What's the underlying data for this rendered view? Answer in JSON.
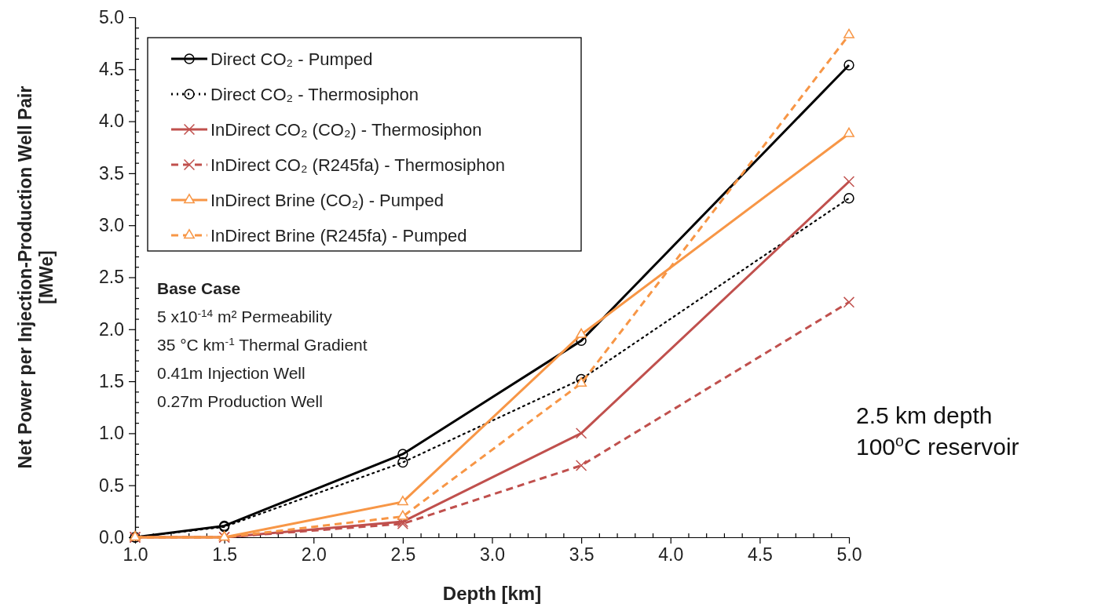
{
  "chart_data": {
    "type": "line",
    "xlabel": "Depth [km]",
    "ylabel": "Net Power per Injection-Production Well Pair\n[MWe]",
    "x": [
      1.0,
      1.5,
      2.5,
      3.5,
      5.0
    ],
    "xlim": [
      1.0,
      5.0
    ],
    "xticks": [
      {
        "value": 1.0,
        "label": "1.0"
      },
      {
        "value": 1.5,
        "label": "1.5"
      },
      {
        "value": 2.0,
        "label": "2.0"
      },
      {
        "value": 2.5,
        "label": "2.5"
      },
      {
        "value": 3.0,
        "label": "3.0"
      },
      {
        "value": 3.5,
        "label": "3.5"
      },
      {
        "value": 4.0,
        "label": "4.0"
      },
      {
        "value": 4.5,
        "label": "4.5"
      },
      {
        "value": 5.0,
        "label": "5.0"
      }
    ],
    "ylim": [
      0,
      5.0
    ],
    "yticks": [
      {
        "value": 0,
        "label": "0.0"
      },
      {
        "value": 0.5,
        "label": "0.5"
      },
      {
        "value": 1.0,
        "label": "1.0"
      },
      {
        "value": 1.5,
        "label": "1.5"
      },
      {
        "value": 2.0,
        "label": "2.0"
      },
      {
        "value": 2.5,
        "label": "2.5"
      },
      {
        "value": 3.0,
        "label": "3.0"
      },
      {
        "value": 3.5,
        "label": "3.5"
      },
      {
        "value": 4.0,
        "label": "4.0"
      },
      {
        "value": 4.5,
        "label": "4.5"
      },
      {
        "value": 5.0,
        "label": "5.0"
      }
    ],
    "grid": false,
    "legend": "top left",
    "series": [
      {
        "name": "Direct CO₂ - Pumped",
        "color": "#000000",
        "marker": "circle",
        "line_style": "solid",
        "values": [
          0,
          0.11,
          0.8,
          1.89,
          4.54
        ]
      },
      {
        "name": "Direct CO₂ - Thermosiphon",
        "color": "#000000",
        "marker": "circle",
        "line_style": "dotted",
        "values": [
          0,
          0.1,
          0.72,
          1.52,
          3.26
        ]
      },
      {
        "name": "InDirect CO₂ (CO₂) - Thermosiphon",
        "color": "#c0504d",
        "marker": "cross",
        "line_style": "solid",
        "values": [
          0,
          0,
          0.15,
          1.0,
          3.42
        ]
      },
      {
        "name": "InDirect CO₂ (R245fa) - Thermosiphon",
        "color": "#c0504d",
        "marker": "cross",
        "line_style": "dashed",
        "values": [
          0,
          0,
          0.13,
          0.69,
          2.26
        ]
      },
      {
        "name": "InDirect Brine (CO₂) - Pumped",
        "color": "#f79646",
        "marker": "triangle",
        "line_style": "solid",
        "values": [
          0,
          0,
          0.34,
          1.95,
          3.88
        ]
      },
      {
        "name": "InDirect Brine (R245fa) - Pumped",
        "color": "#f79646",
        "marker": "triangle",
        "line_style": "dashed",
        "values": [
          0,
          0,
          0.2,
          1.48,
          4.83
        ]
      }
    ],
    "annotations": [
      "Base Case",
      "5 x10$^{-14}$ m² Permeability",
      "35 °C km$^{-1}$ Thermal Gradient",
      "0.41m Injection Well",
      "0.27m Production Well",
      "2.5 km depth",
      "100$^{o}$C reservoir"
    ]
  }
}
